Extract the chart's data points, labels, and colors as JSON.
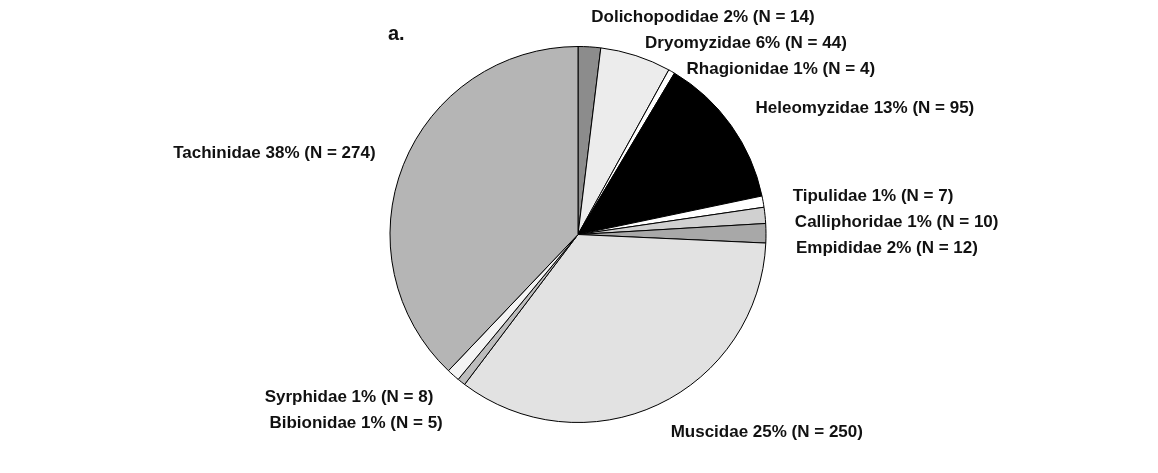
{
  "chart_data": {
    "type": "pie",
    "title": "a.",
    "categories": [
      "Dolichopodidae",
      "Dryomyzidae",
      "Rhagionidae",
      "Heleomyzidae",
      "Tipulidae",
      "Calliphoridae",
      "Empididae",
      "Muscidae",
      "Bibionidae",
      "Syrphidae",
      "Tachinidae"
    ],
    "values": [
      14,
      44,
      4,
      95,
      7,
      10,
      12,
      250,
      5,
      8,
      274
    ],
    "value_labels": [
      "2% (N = 14)",
      "6% (N = 44)",
      "1% (N = 4)",
      "13% (N = 95)",
      "1% (N = 7)",
      "1% (N = 10)",
      "2% (N = 12)",
      "25% (N = 250)",
      "1% (N = 5)",
      "1% (N = 8)",
      "38% (N = 274)"
    ],
    "colors": [
      "#8c8c8c",
      "#ececec",
      "#ffffff",
      "#000000",
      "#ffffff",
      "#d0d0d0",
      "#a8a8a8",
      "#e2e2e2",
      "#bdbdbd",
      "#f4f4f4",
      "#b5b5b5"
    ],
    "legend": false
  }
}
